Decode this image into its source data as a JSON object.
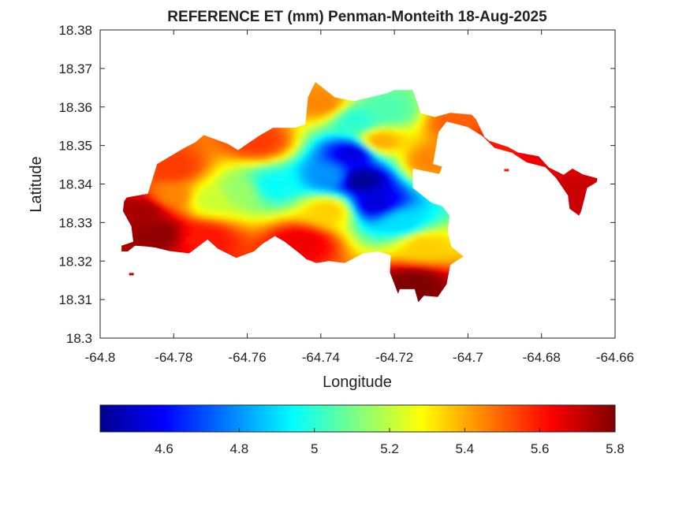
{
  "chart_data": {
    "type": "heatmap",
    "title": "REFERENCE ET (mm) Penman-Monteith 18-Aug-2025",
    "xlabel": "Longitude",
    "ylabel": "Latitude",
    "xlim": [
      -64.8,
      -64.66
    ],
    "ylim": [
      18.3,
      18.38
    ],
    "x_ticks": [
      -64.8,
      -64.78,
      -64.76,
      -64.74,
      -64.72,
      -64.7,
      -64.68,
      -64.66
    ],
    "x_tick_labels": [
      "-64.8",
      "-64.78",
      "-64.76",
      "-64.74",
      "-64.72",
      "-64.7",
      "-64.68",
      "-64.66"
    ],
    "y_ticks": [
      18.3,
      18.31,
      18.32,
      18.33,
      18.34,
      18.35,
      18.36,
      18.37,
      18.38
    ],
    "y_tick_labels": [
      "18.3",
      "18.31",
      "18.32",
      "18.33",
      "18.34",
      "18.35",
      "18.36",
      "18.37",
      "18.38"
    ],
    "grid": false,
    "colormap": "jet",
    "colorbar": {
      "placement": "bottom",
      "range": [
        4.43,
        5.8
      ],
      "ticks": [
        4.6,
        4.8,
        5.0,
        5.2,
        5.4,
        5.6,
        5.8
      ],
      "tick_labels": [
        "4.6",
        "4.8",
        "5",
        "5.2",
        "5.4",
        "5.6",
        "5.8"
      ]
    },
    "region_outline": [
      [
        -64.7928,
        18.3365
      ],
      [
        -64.787,
        18.3375
      ],
      [
        -64.7845,
        18.3452
      ],
      [
        -64.7772,
        18.3493
      ],
      [
        -64.7742,
        18.3508
      ],
      [
        -64.7718,
        18.3527
      ],
      [
        -64.7652,
        18.3504
      ],
      [
        -64.7625,
        18.3488
      ],
      [
        -64.7568,
        18.3525
      ],
      [
        -64.753,
        18.3546
      ],
      [
        -64.747,
        18.3546
      ],
      [
        -64.7442,
        18.3555
      ],
      [
        -64.7435,
        18.3625
      ],
      [
        -64.7415,
        18.3665
      ],
      [
        -64.7362,
        18.3625
      ],
      [
        -64.731,
        18.3615
      ],
      [
        -64.7222,
        18.3635
      ],
      [
        -64.72,
        18.3644
      ],
      [
        -64.715,
        18.3644
      ],
      [
        -64.7128,
        18.3584
      ],
      [
        -64.709,
        18.3574
      ],
      [
        -64.7048,
        18.3585
      ],
      [
        -64.699,
        18.358
      ],
      [
        -64.6978,
        18.3568
      ],
      [
        -64.6955,
        18.3522
      ],
      [
        -64.6942,
        18.3512
      ],
      [
        -64.689,
        18.3496
      ],
      [
        -64.6865,
        18.3482
      ],
      [
        -64.6808,
        18.3472
      ],
      [
        -64.678,
        18.3443
      ],
      [
        -64.674,
        18.3424
      ],
      [
        -64.6716,
        18.344
      ],
      [
        -64.6688,
        18.3425
      ],
      [
        -64.6648,
        18.3415
      ],
      [
        -64.665,
        18.3405
      ],
      [
        -64.6676,
        18.339
      ],
      [
        -64.6692,
        18.333
      ],
      [
        -64.6698,
        18.3318
      ],
      [
        -64.6724,
        18.3336
      ],
      [
        -64.6728,
        18.337
      ],
      [
        -64.676,
        18.3415
      ],
      [
        -64.679,
        18.3444
      ],
      [
        -64.684,
        18.3456
      ],
      [
        -64.688,
        18.3481
      ],
      [
        -64.6928,
        18.3494
      ],
      [
        -64.696,
        18.3524
      ],
      [
        -64.7,
        18.3548
      ],
      [
        -64.7058,
        18.3562
      ],
      [
        -64.708,
        18.3535
      ],
      [
        -64.7095,
        18.3452
      ],
      [
        -64.707,
        18.3445
      ],
      [
        -64.7078,
        18.3426
      ],
      [
        -64.715,
        18.344
      ],
      [
        -64.715,
        18.339
      ],
      [
        -64.71,
        18.3352
      ],
      [
        -64.707,
        18.3342
      ],
      [
        -64.705,
        18.3318
      ],
      [
        -64.7055,
        18.3275
      ],
      [
        -64.7045,
        18.3237
      ],
      [
        -64.7012,
        18.3212
      ],
      [
        -64.7048,
        18.319
      ],
      [
        -64.7058,
        18.314
      ],
      [
        -64.7082,
        18.3107
      ],
      [
        -64.712,
        18.311
      ],
      [
        -64.7135,
        18.3093
      ],
      [
        -64.7145,
        18.3127
      ],
      [
        -64.7185,
        18.3127
      ],
      [
        -64.719,
        18.3115
      ],
      [
        -64.7212,
        18.317
      ],
      [
        -64.721,
        18.3215
      ],
      [
        -64.7245,
        18.3225
      ],
      [
        -64.7285,
        18.322
      ],
      [
        -64.7335,
        18.3195
      ],
      [
        -64.7378,
        18.32
      ],
      [
        -64.7412,
        18.3195
      ],
      [
        -64.744,
        18.3205
      ],
      [
        -64.7455,
        18.3218
      ],
      [
        -64.7498,
        18.325
      ],
      [
        -64.7525,
        18.3265
      ],
      [
        -64.7558,
        18.3245
      ],
      [
        -64.7582,
        18.3225
      ],
      [
        -64.763,
        18.3208
      ],
      [
        -64.768,
        18.3232
      ],
      [
        -64.7708,
        18.3256
      ],
      [
        -64.7758,
        18.322
      ],
      [
        -64.7812,
        18.3226
      ],
      [
        -64.785,
        18.3235
      ],
      [
        -64.7875,
        18.3238
      ],
      [
        -64.7905,
        18.324
      ],
      [
        -64.7925,
        18.3225
      ],
      [
        -64.7942,
        18.3225
      ],
      [
        -64.7942,
        18.324
      ],
      [
        -64.791,
        18.325
      ],
      [
        -64.7915,
        18.329
      ],
      [
        -64.7938,
        18.333
      ],
      [
        -64.7935,
        18.3355
      ]
    ],
    "field_centers": [
      {
        "lon": -64.729,
        "lat": 18.341,
        "et": 4.46
      },
      {
        "lon": -64.731,
        "lat": 18.348,
        "et": 4.55
      },
      {
        "lon": -64.725,
        "lat": 18.335,
        "et": 4.55
      },
      {
        "lon": -64.738,
        "lat": 18.342,
        "et": 4.8
      },
      {
        "lon": -64.753,
        "lat": 18.3395,
        "et": 4.95
      },
      {
        "lon": -64.718,
        "lat": 18.33,
        "et": 4.9
      },
      {
        "lon": -64.722,
        "lat": 18.359,
        "et": 5.05
      },
      {
        "lon": -64.73,
        "lat": 18.3565,
        "et": 5.0
      },
      {
        "lon": -64.77,
        "lat": 18.336,
        "et": 5.22
      },
      {
        "lon": -64.762,
        "lat": 18.338,
        "et": 5.15
      },
      {
        "lon": -64.712,
        "lat": 18.324,
        "et": 5.35
      },
      {
        "lon": -64.724,
        "lat": 18.351,
        "et": 5.4
      },
      {
        "lon": -64.78,
        "lat": 18.344,
        "et": 5.55
      },
      {
        "lon": -64.788,
        "lat": 18.333,
        "et": 5.75
      },
      {
        "lon": -64.784,
        "lat": 18.327,
        "et": 5.78
      },
      {
        "lon": -64.772,
        "lat": 18.326,
        "et": 5.6
      },
      {
        "lon": -64.745,
        "lat": 18.325,
        "et": 5.65
      },
      {
        "lon": -64.715,
        "lat": 18.314,
        "et": 5.8
      },
      {
        "lon": -64.738,
        "lat": 18.333,
        "et": 5.35
      },
      {
        "lon": -64.74,
        "lat": 18.361,
        "et": 5.45
      },
      {
        "lon": -64.703,
        "lat": 18.356,
        "et": 5.5
      },
      {
        "lon": -64.695,
        "lat": 18.35,
        "et": 5.6
      },
      {
        "lon": -64.672,
        "lat": 18.338,
        "et": 5.7
      },
      {
        "lon": -64.68,
        "lat": 18.3455,
        "et": 5.65
      },
      {
        "lon": -64.71,
        "lat": 18.346,
        "et": 5.45
      },
      {
        "lon": -64.757,
        "lat": 18.351,
        "et": 5.55
      },
      {
        "lon": -64.78,
        "lat": 18.337,
        "et": 5.45
      }
    ],
    "isolated_cells": [
      {
        "lon": -64.7915,
        "lat": 18.3165,
        "et": 5.7
      },
      {
        "lon": -64.6895,
        "lat": 18.3435,
        "et": 5.6
      }
    ]
  }
}
